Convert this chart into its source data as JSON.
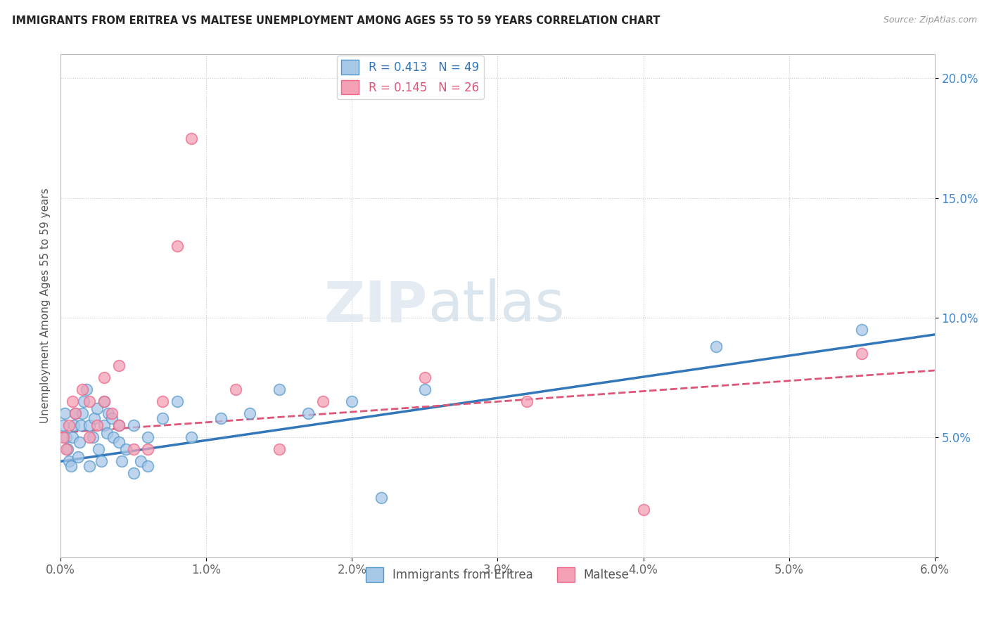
{
  "title": "IMMIGRANTS FROM ERITREA VS MALTESE UNEMPLOYMENT AMONG AGES 55 TO 59 YEARS CORRELATION CHART",
  "source": "Source: ZipAtlas.com",
  "ylabel": "Unemployment Among Ages 55 to 59 years",
  "xlim": [
    0.0,
    0.06
  ],
  "ylim": [
    0.0,
    0.21
  ],
  "xticks": [
    0.0,
    0.01,
    0.02,
    0.03,
    0.04,
    0.05,
    0.06
  ],
  "xticklabels": [
    "0.0%",
    "1.0%",
    "2.0%",
    "3.0%",
    "4.0%",
    "5.0%",
    "6.0%"
  ],
  "yticks": [
    0.0,
    0.05,
    0.1,
    0.15,
    0.2
  ],
  "yticklabels": [
    "",
    "5.0%",
    "10.0%",
    "15.0%",
    "20.0%"
  ],
  "legend1_label": "R = 0.413   N = 49",
  "legend2_label": "R = 0.145   N = 26",
  "legend_series1": "Immigrants from Eritrea",
  "legend_series2": "Maltese",
  "color_blue": "#a8c8e8",
  "color_pink": "#f4a0b5",
  "color_blue_edge": "#5599cc",
  "color_pink_edge": "#ee6688",
  "color_blue_line": "#3377bb",
  "color_pink_line": "#dd5577",
  "watermark_zip": "ZIP",
  "watermark_atlas": "atlas",
  "blue_x": [
    0.0002,
    0.0003,
    0.0004,
    0.0005,
    0.0006,
    0.0007,
    0.0008,
    0.0009,
    0.001,
    0.0012,
    0.0013,
    0.0014,
    0.0015,
    0.0016,
    0.0018,
    0.002,
    0.002,
    0.0022,
    0.0023,
    0.0025,
    0.0026,
    0.0028,
    0.003,
    0.003,
    0.0032,
    0.0033,
    0.0035,
    0.0036,
    0.004,
    0.004,
    0.0042,
    0.0045,
    0.005,
    0.005,
    0.0055,
    0.006,
    0.006,
    0.007,
    0.008,
    0.009,
    0.011,
    0.013,
    0.015,
    0.017,
    0.02,
    0.022,
    0.025,
    0.045,
    0.055
  ],
  "blue_y": [
    0.055,
    0.06,
    0.05,
    0.045,
    0.04,
    0.038,
    0.05,
    0.055,
    0.06,
    0.042,
    0.048,
    0.055,
    0.06,
    0.065,
    0.07,
    0.038,
    0.055,
    0.05,
    0.058,
    0.062,
    0.045,
    0.04,
    0.055,
    0.065,
    0.052,
    0.06,
    0.058,
    0.05,
    0.048,
    0.055,
    0.04,
    0.045,
    0.035,
    0.055,
    0.04,
    0.038,
    0.05,
    0.058,
    0.065,
    0.05,
    0.058,
    0.06,
    0.07,
    0.06,
    0.065,
    0.025,
    0.07,
    0.088,
    0.095
  ],
  "pink_x": [
    0.0002,
    0.0004,
    0.0006,
    0.0008,
    0.001,
    0.0015,
    0.002,
    0.002,
    0.0025,
    0.003,
    0.003,
    0.0035,
    0.004,
    0.004,
    0.005,
    0.006,
    0.007,
    0.008,
    0.009,
    0.012,
    0.015,
    0.018,
    0.025,
    0.032,
    0.04,
    0.055
  ],
  "pink_y": [
    0.05,
    0.045,
    0.055,
    0.065,
    0.06,
    0.07,
    0.05,
    0.065,
    0.055,
    0.065,
    0.075,
    0.06,
    0.055,
    0.08,
    0.045,
    0.045,
    0.065,
    0.13,
    0.175,
    0.07,
    0.045,
    0.065,
    0.075,
    0.065,
    0.02,
    0.085
  ],
  "blue_line_x0": 0.0,
  "blue_line_y0": 0.04,
  "blue_line_x1": 0.06,
  "blue_line_y1": 0.093,
  "pink_line_x0": 0.0,
  "pink_line_y0": 0.052,
  "pink_line_x1": 0.06,
  "pink_line_y1": 0.078
}
